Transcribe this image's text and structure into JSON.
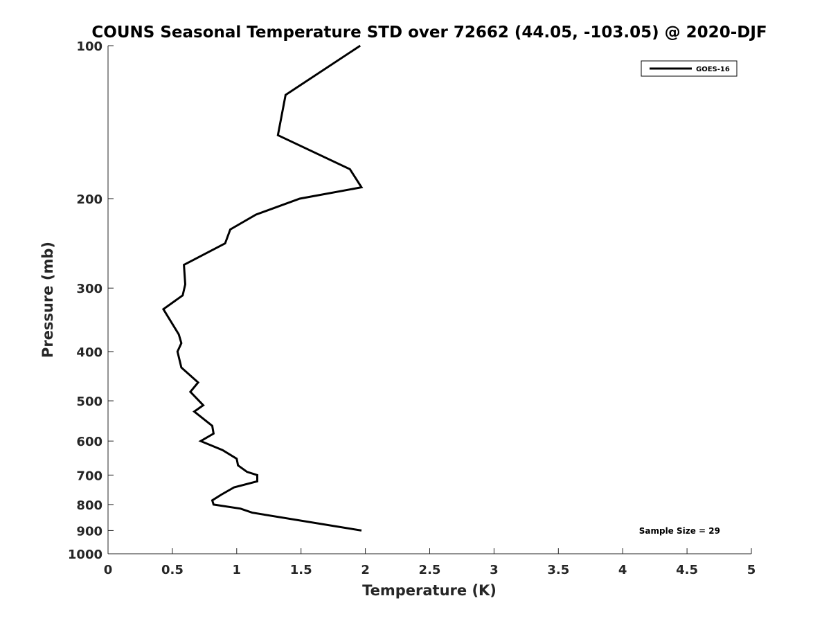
{
  "chart_data": {
    "type": "line",
    "title": "COUNS Seasonal Temperature STD over 72662 (44.05, -103.05) @ 2020-DJF",
    "xlabel": "Temperature (K)",
    "ylabel": "Pressure (mb)",
    "xlim": [
      0,
      5
    ],
    "ylim": [
      100,
      1000
    ],
    "y_scale": "log",
    "y_reversed": true,
    "grid": false,
    "legend_position": "top-right",
    "x_ticks": [
      "0",
      "0.5",
      "1",
      "1.5",
      "2",
      "2.5",
      "3",
      "3.5",
      "4",
      "4.5",
      "5"
    ],
    "y_ticks": [
      "100",
      "200",
      "300",
      "400",
      "500",
      "600",
      "700",
      "800",
      "900",
      "1000"
    ],
    "series": [
      {
        "name": "GOES-16",
        "color": "#000000",
        "points": [
          {
            "x": 1.96,
            "y": 100
          },
          {
            "x": 1.38,
            "y": 125
          },
          {
            "x": 1.32,
            "y": 150
          },
          {
            "x": 1.88,
            "y": 175
          },
          {
            "x": 1.97,
            "y": 190
          },
          {
            "x": 1.49,
            "y": 200
          },
          {
            "x": 1.15,
            "y": 215
          },
          {
            "x": 0.95,
            "y": 230
          },
          {
            "x": 0.91,
            "y": 245
          },
          {
            "x": 0.59,
            "y": 270
          },
          {
            "x": 0.6,
            "y": 295
          },
          {
            "x": 0.58,
            "y": 310
          },
          {
            "x": 0.43,
            "y": 330
          },
          {
            "x": 0.55,
            "y": 370
          },
          {
            "x": 0.57,
            "y": 385
          },
          {
            "x": 0.54,
            "y": 400
          },
          {
            "x": 0.57,
            "y": 430
          },
          {
            "x": 0.7,
            "y": 460
          },
          {
            "x": 0.64,
            "y": 480
          },
          {
            "x": 0.74,
            "y": 510
          },
          {
            "x": 0.67,
            "y": 525
          },
          {
            "x": 0.81,
            "y": 560
          },
          {
            "x": 0.82,
            "y": 580
          },
          {
            "x": 0.72,
            "y": 600
          },
          {
            "x": 0.89,
            "y": 625
          },
          {
            "x": 1.0,
            "y": 650
          },
          {
            "x": 1.01,
            "y": 670
          },
          {
            "x": 1.08,
            "y": 690
          },
          {
            "x": 1.16,
            "y": 700
          },
          {
            "x": 1.16,
            "y": 720
          },
          {
            "x": 0.98,
            "y": 740
          },
          {
            "x": 0.88,
            "y": 765
          },
          {
            "x": 0.81,
            "y": 785
          },
          {
            "x": 0.82,
            "y": 800
          },
          {
            "x": 1.03,
            "y": 815
          },
          {
            "x": 1.12,
            "y": 830
          },
          {
            "x": 1.97,
            "y": 900
          }
        ]
      }
    ],
    "annotations": [
      "Sample Size = 29"
    ]
  }
}
